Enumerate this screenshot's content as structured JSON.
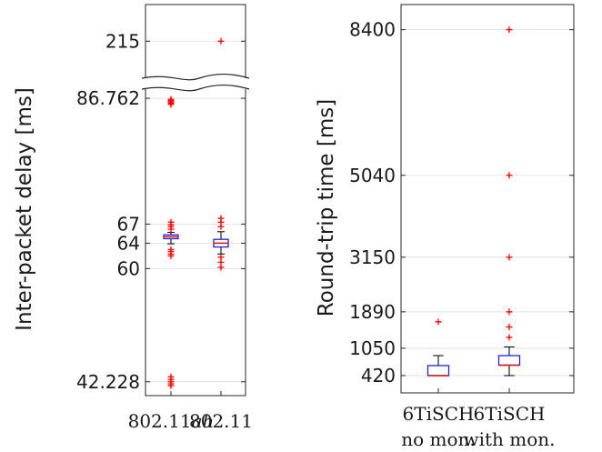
{
  "chart_data": [
    {
      "type": "box",
      "ylabel": "Inter-packet delay [ms]",
      "xlabel": "",
      "y_axis_break": [
        86.762,
        215
      ],
      "yticks": [
        "215",
        "86.762",
        "67",
        "64",
        "60",
        "42.228"
      ],
      "ytick_values": [
        215,
        86.762,
        67,
        64,
        60,
        42.228
      ],
      "categories": [
        "802.11ah",
        "802.11"
      ],
      "category_parts": [
        [
          {
            "text": "802.11",
            "italic": false
          },
          {
            "text": "ah",
            "italic": true
          }
        ],
        [
          {
            "text": "802.11",
            "italic": false
          }
        ]
      ],
      "boxes": [
        {
          "name": "802.11ah",
          "whisker_low": 63.9,
          "q1": 64.7,
          "median": 65.0,
          "q3": 65.3,
          "whisker_high": 65.7,
          "outliers": [
            85.8,
            86.0,
            86.2,
            86.4,
            86.6,
            66.2,
            66.6,
            66.9,
            67.3,
            63.0,
            62.7,
            62.3,
            62.0,
            42.228,
            42.6,
            43.0,
            41.9,
            41.6
          ]
        },
        {
          "name": "802.11",
          "whisker_low": 62.3,
          "q1": 63.4,
          "median": 64.0,
          "q3": 64.6,
          "whisker_high": 65.8,
          "outliers": [
            215,
            66.6,
            67.3,
            67.9,
            61.8,
            61.0,
            60.2
          ]
        }
      ],
      "grid": true
    },
    {
      "type": "box",
      "ylabel": "Round-trip time [ms]",
      "xlabel": "",
      "yticks": [
        "8400",
        "5040",
        "3150",
        "1890",
        "1050",
        "420"
      ],
      "ytick_values": [
        8400,
        5040,
        3150,
        1890,
        1050,
        420
      ],
      "categories": [
        "6TiSCH no mon.",
        "6TiSCH with mon."
      ],
      "category_parts": [
        [
          "6TiSCH",
          "no mon."
        ],
        [
          "6TiSCH",
          "with mon."
        ]
      ],
      "boxes": [
        {
          "name": "6TiSCH no mon.",
          "whisker_low": 420,
          "q1": 420,
          "median": 420,
          "q3": 650,
          "whisker_high": 880,
          "outliers": [
            1660
          ]
        },
        {
          "name": "6TiSCH with mon.",
          "whisker_low": 420,
          "q1": 660,
          "median": 660,
          "q3": 880,
          "whisker_high": 1080,
          "outliers": [
            8400,
            5040,
            3150,
            1890,
            1540,
            1300
          ]
        }
      ],
      "grid": true
    }
  ]
}
